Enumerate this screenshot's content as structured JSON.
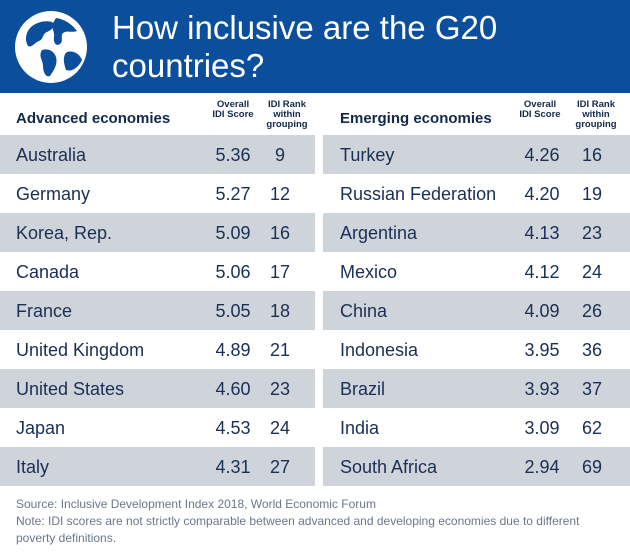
{
  "title": "How inclusive are the G20 countries?",
  "icon": "globe-icon",
  "colors": {
    "header": "#0b4f9c",
    "shade": "#cfd3da",
    "text": "#1a2f55"
  },
  "advanced": {
    "heading": "Advanced economies",
    "col_score": "Overall IDI Score",
    "col_rank": "IDI Rank within grouping",
    "rows": [
      {
        "name": "Australia",
        "score": "5.36",
        "rank": "9"
      },
      {
        "name": "Germany",
        "score": "5.27",
        "rank": "12"
      },
      {
        "name": "Korea, Rep.",
        "score": "5.09",
        "rank": "16"
      },
      {
        "name": "Canada",
        "score": "5.06",
        "rank": "17"
      },
      {
        "name": "France",
        "score": "5.05",
        "rank": "18"
      },
      {
        "name": "United Kingdom",
        "score": "4.89",
        "rank": "21"
      },
      {
        "name": "United States",
        "score": "4.60",
        "rank": "23"
      },
      {
        "name": "Japan",
        "score": "4.53",
        "rank": "24"
      },
      {
        "name": "Italy",
        "score": "4.31",
        "rank": "27"
      }
    ]
  },
  "emerging": {
    "heading": "Emerging economies",
    "col_score": "Overall IDI Score",
    "col_rank": "IDI Rank within grouping",
    "rows": [
      {
        "name": "Turkey",
        "score": "4.26",
        "rank": "16"
      },
      {
        "name": "Russian Federation",
        "score": "4.20",
        "rank": "19"
      },
      {
        "name": "Argentina",
        "score": "4.13",
        "rank": "23"
      },
      {
        "name": "Mexico",
        "score": "4.12",
        "rank": "24"
      },
      {
        "name": "China",
        "score": "4.09",
        "rank": "26"
      },
      {
        "name": "Indonesia",
        "score": "3.95",
        "rank": "36"
      },
      {
        "name": "Brazil",
        "score": "3.93",
        "rank": "37"
      },
      {
        "name": "India",
        "score": "3.09",
        "rank": "62"
      },
      {
        "name": "South Africa",
        "score": "2.94",
        "rank": "69"
      }
    ]
  },
  "footer": {
    "source": "Source: Inclusive Development Index 2018, World Economic Forum",
    "note": "Note: IDI scores are not strictly comparable between advanced and developing economies due to different poverty definitions."
  }
}
